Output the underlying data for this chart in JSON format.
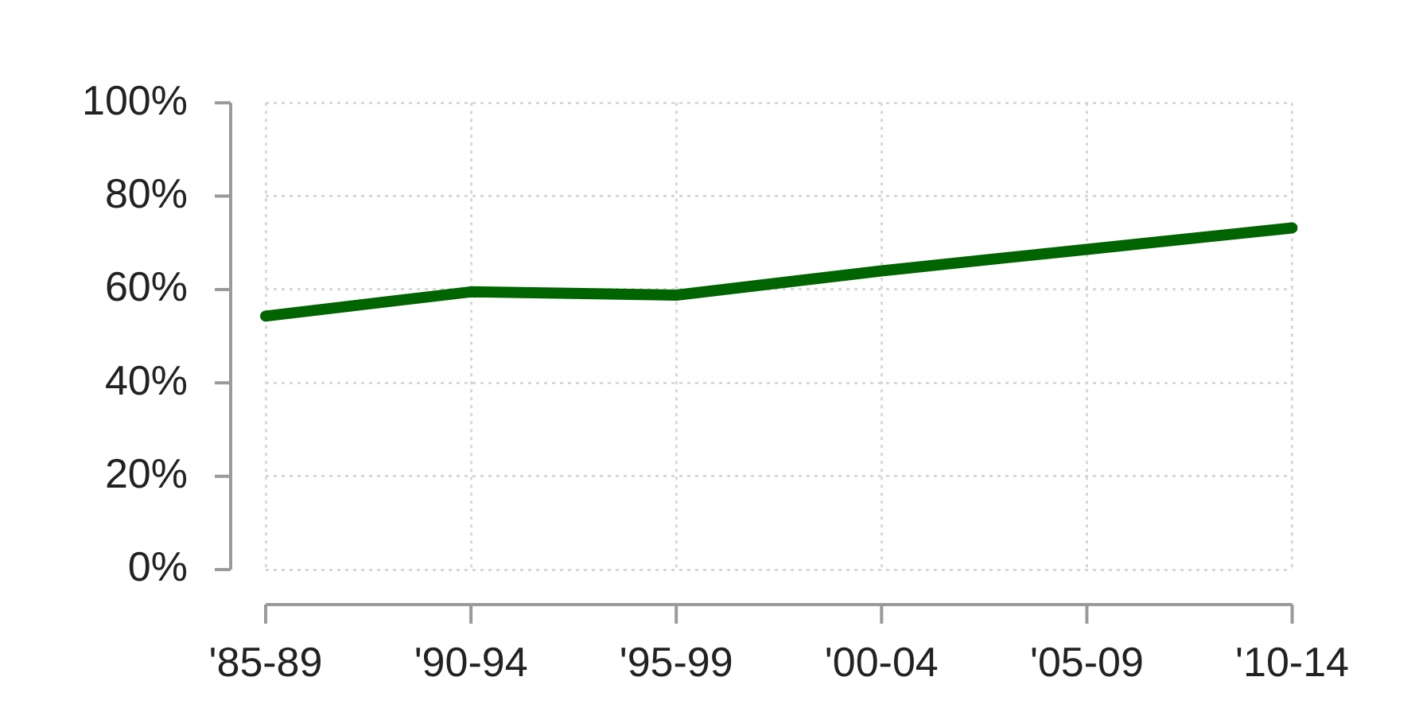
{
  "chart_data": {
    "type": "line",
    "categories": [
      "'85-89",
      "'90-94",
      "'95-99",
      "'00-04",
      "'05-09",
      "'10-14"
    ],
    "series": [
      {
        "color": "#006400",
        "values": [
          54.3,
          59.5,
          58.8,
          64,
          68.6,
          73.2
        ]
      }
    ],
    "ylim": [
      0,
      100
    ],
    "yticks": [
      {
        "value": 0,
        "label": "0%"
      },
      {
        "value": 20,
        "label": "20%"
      },
      {
        "value": 40,
        "label": "40%"
      },
      {
        "value": 60,
        "label": "60%"
      },
      {
        "value": 80,
        "label": "80%"
      },
      {
        "value": 100,
        "label": "100%"
      }
    ],
    "grid": true,
    "legend": false,
    "marker": "none",
    "line_style": "solid"
  }
}
